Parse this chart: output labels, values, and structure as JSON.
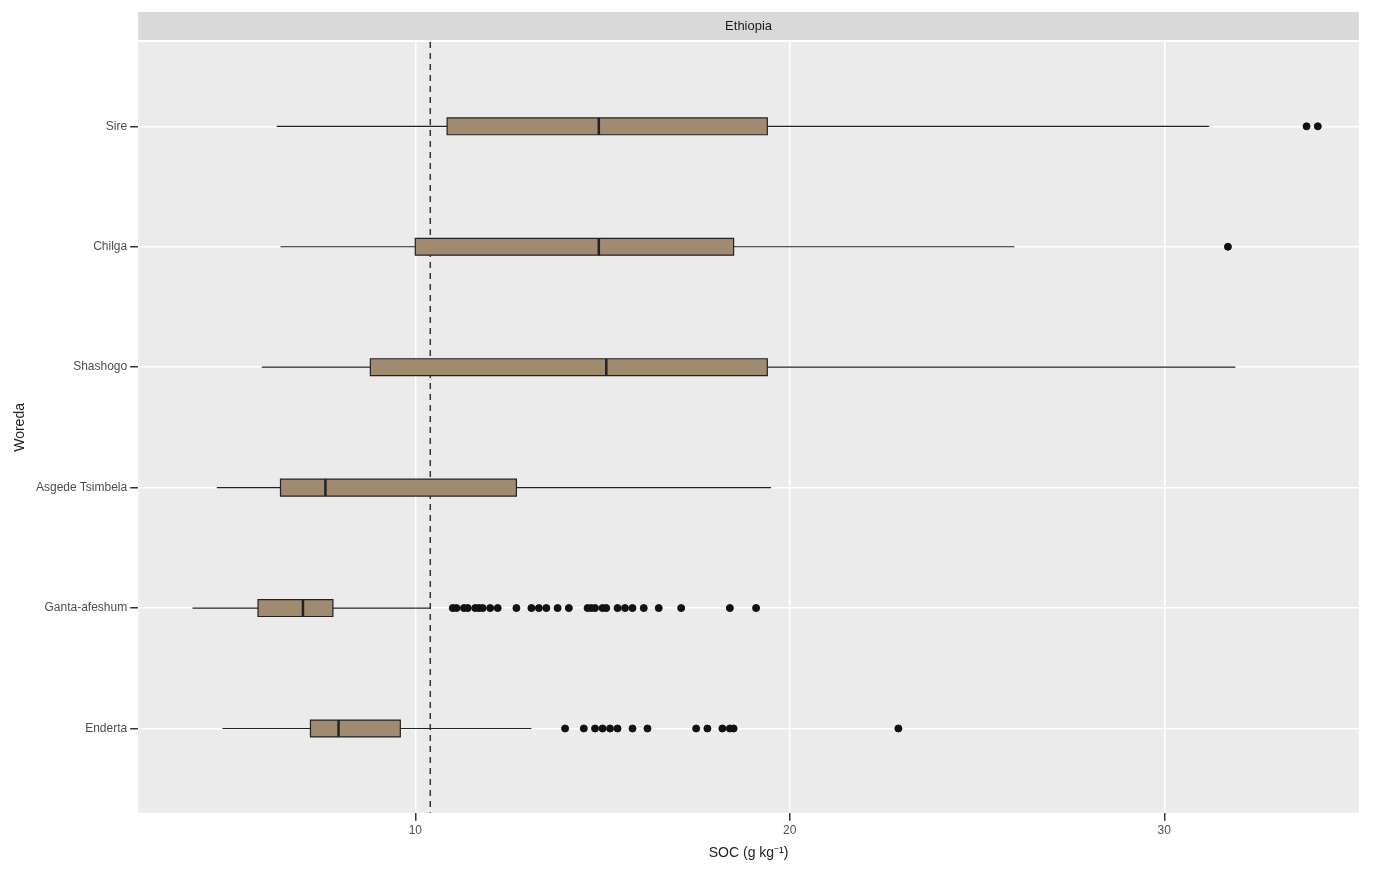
{
  "chart_data": {
    "type": "box",
    "orientation": "horizontal",
    "title": "Ethiopia",
    "xlabel": "SOC (g kg⁻¹)",
    "ylabel": "Woreda",
    "categories": [
      "Sire",
      "Chilga",
      "Shashogo",
      "Asgede Tsimbela",
      "Ganta-afeshum",
      "Enderta"
    ],
    "boxes": [
      {
        "low": 6.3,
        "q1": 10.85,
        "median": 14.9,
        "q3": 19.4,
        "high": 31.2,
        "outliers": [
          33.8,
          34.1
        ]
      },
      {
        "low": 6.4,
        "q1": 10.0,
        "median": 14.9,
        "q3": 18.5,
        "high": 26.0,
        "outliers": [
          31.7
        ]
      },
      {
        "low": 5.9,
        "q1": 8.8,
        "median": 15.1,
        "q3": 19.4,
        "high": 31.9
      },
      {
        "low": 4.7,
        "q1": 6.4,
        "median": 7.6,
        "q3": 12.7,
        "high": 19.5
      },
      {
        "low": 4.05,
        "q1": 5.8,
        "median": 7.0,
        "q3": 7.8,
        "high": 10.4,
        "outliers": [
          11.0,
          11.1,
          11.3,
          11.4,
          11.6,
          11.7,
          11.8,
          12.0,
          12.2,
          12.7,
          13.1,
          13.3,
          13.5,
          13.8,
          14.1,
          14.6,
          14.7,
          14.8,
          15.0,
          15.1,
          15.4,
          15.6,
          15.8,
          16.1,
          16.5,
          17.1,
          18.4,
          19.1
        ]
      },
      {
        "low": 4.85,
        "q1": 7.2,
        "median": 7.95,
        "q3": 9.6,
        "high": 13.1,
        "outliers": [
          14.0,
          14.5,
          14.8,
          15.0,
          15.2,
          15.4,
          15.8,
          16.2,
          17.5,
          17.8,
          18.2,
          18.4,
          18.5,
          22.9
        ]
      }
    ],
    "color": "#a08a70",
    "xlim": [
      2.6,
      35.2
    ],
    "xticks": [
      10,
      20,
      30
    ],
    "grid": true,
    "ref_lines": [
      {
        "axis": "x",
        "value": 10.4,
        "line_style": "dashed",
        "color": "#333333"
      }
    ]
  }
}
